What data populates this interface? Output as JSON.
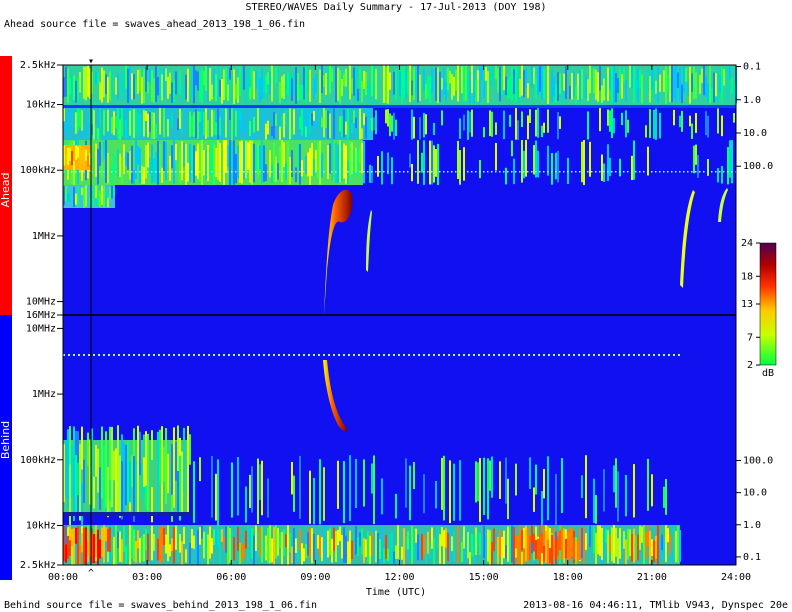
{
  "chart_data": {
    "type": "spectrogram",
    "title": "STEREO/WAVES Daily Summary - 17-Jul-2013 (DOY 198)",
    "ahead_source": "Ahead source file = swaves_ahead_2013_198_1_06.fin",
    "behind_source": "Behind source file = swaves_behind_2013_198_1_06.fin",
    "footer": "2013-08-16 04:46:11, TMlib V943, Dynspec 20e",
    "xlabel": "Time (UTC)",
    "xlim": [
      0,
      24
    ],
    "xticks": [
      {
        "value": 0,
        "label": "00:00"
      },
      {
        "value": 3,
        "label": "03:00"
      },
      {
        "value": 6,
        "label": "06:00"
      },
      {
        "value": 9,
        "label": "09:00"
      },
      {
        "value": 12,
        "label": "12:00"
      },
      {
        "value": 15,
        "label": "15:00"
      },
      {
        "value": 18,
        "label": "18:00"
      },
      {
        "value": 21,
        "label": "21:00"
      },
      {
        "value": 24,
        "label": "24:00"
      }
    ],
    "panels": [
      {
        "label": "Ahead",
        "log": true,
        "ylim": [
          16000000,
          2500
        ],
        "yticks": [
          {
            "value": 2500,
            "label": "2.5kHz"
          },
          {
            "value": 10000,
            "label": "10kHz"
          },
          {
            "value": 100000,
            "label": "100kHz"
          },
          {
            "value": 1000000,
            "label": "1MHz"
          },
          {
            "value": 10000000,
            "label": "10MHz"
          },
          {
            "value": 16000000,
            "label": "16MHz"
          }
        ],
        "y2lim": [
          3000000,
          0.09
        ],
        "y2ticks": [
          0.1,
          {
            "value": 1,
            "label": "1.0"
          },
          {
            "value": 10,
            "label": "10.0"
          },
          {
            "value": 100,
            "label": "100.0"
          }
        ]
      },
      {
        "label": "Behind",
        "log": true,
        "ylim": [
          2500,
          16000000
        ],
        "yticks": [
          {
            "value": 10000000,
            "label": "10MHz"
          },
          {
            "value": 1000000,
            "label": "1MHz"
          },
          {
            "value": 100000,
            "label": "100kHz"
          },
          {
            "value": 10000,
            "label": "10kHz"
          },
          {
            "value": 2500,
            "label": "2.5kHz"
          }
        ],
        "y2lim": [
          0.056,
          3400000
        ],
        "y2ticks": [
          0.1,
          {
            "value": 1,
            "label": "1.0"
          },
          {
            "value": 10,
            "label": "10.0"
          },
          {
            "value": 100,
            "label": "100.0"
          }
        ]
      }
    ],
    "colorbar": {
      "label": "dB",
      "lim": [
        2,
        24
      ],
      "ticks": [
        2,
        7,
        13,
        18,
        24
      ]
    }
  }
}
